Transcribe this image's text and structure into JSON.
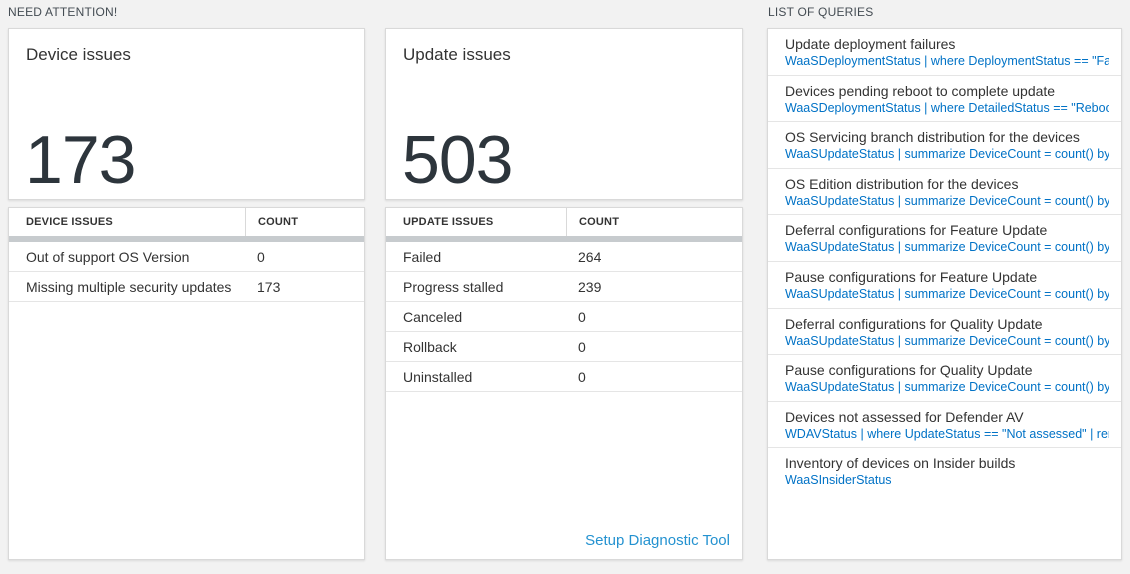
{
  "sections": {
    "need_attention": "NEED ATTENTION!",
    "list_of_queries": "LIST OF QUERIES"
  },
  "device_issues_card": {
    "title": "Device issues",
    "count": "173"
  },
  "update_issues_card": {
    "title": "Update issues",
    "count": "503"
  },
  "device_issues_table": {
    "headers": {
      "issue": "DEVICE ISSUES",
      "count": "COUNT"
    },
    "rows": [
      {
        "label": "Out of support OS Version",
        "count": "0"
      },
      {
        "label": "Missing multiple security updates",
        "count": "173"
      }
    ]
  },
  "update_issues_table": {
    "headers": {
      "issue": "UPDATE ISSUES",
      "count": "COUNT"
    },
    "rows": [
      {
        "label": "Failed",
        "count": "264"
      },
      {
        "label": "Progress stalled",
        "count": "239"
      },
      {
        "label": "Canceled",
        "count": "0"
      },
      {
        "label": "Rollback",
        "count": "0"
      },
      {
        "label": "Uninstalled",
        "count": "0"
      }
    ],
    "footer_link": "Setup Diagnostic Tool"
  },
  "queries": {
    "items": [
      {
        "title": "Update deployment failures",
        "query": "WaaSDeploymentStatus | where DeploymentStatus == \"Failed\" |..."
      },
      {
        "title": "Devices pending reboot to complete update",
        "query": "WaaSDeploymentStatus | where DetailedStatus == \"Reboot pend..."
      },
      {
        "title": "OS Servicing branch distribution for the devices",
        "query": "WaaSUpdateStatus | summarize DeviceCount = count() by OSSer..."
      },
      {
        "title": "OS Edition distribution for the devices",
        "query": "WaaSUpdateStatus | summarize DeviceCount = count() by OSEdit..."
      },
      {
        "title": "Deferral configurations for Feature Update",
        "query": "WaaSUpdateStatus | summarize DeviceCount = count() by Featur..."
      },
      {
        "title": "Pause configurations for Feature Update",
        "query": "WaaSUpdateStatus | summarize DeviceCount = count() by Featur..."
      },
      {
        "title": "Deferral configurations for Quality Update",
        "query": "WaaSUpdateStatus | summarize DeviceCount = count() by Qualit..."
      },
      {
        "title": "Pause configurations for Quality Update",
        "query": "WaaSUpdateStatus | summarize DeviceCount = count() by Qualit..."
      },
      {
        "title": "Devices not assessed for Defender AV",
        "query": "WDAVStatus | where UpdateStatus == \"Not assessed\" | render ta..."
      },
      {
        "title": "Inventory of devices on Insider builds",
        "query": "WaaSInsiderStatus"
      }
    ]
  },
  "colors": {
    "page_background": "#f2f2f2",
    "query_link_blue": "#0072c6",
    "setup_link_blue": "#2492d0",
    "big_number": "#2d353c",
    "table_header_bar": "#c7cbce"
  }
}
